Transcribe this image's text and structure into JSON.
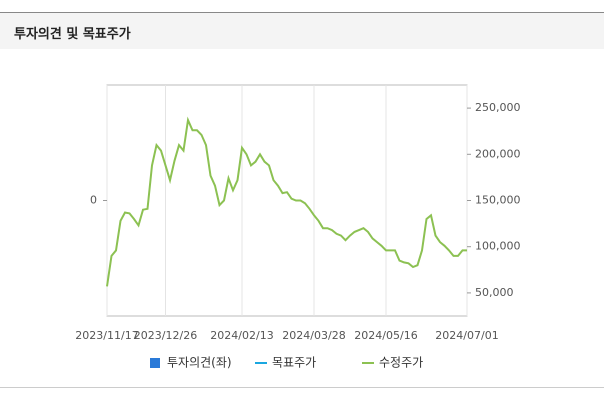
{
  "header": {
    "title": "투자의견 및 목표주가"
  },
  "chart_data": {
    "type": "line",
    "categories": [
      "2023/11/17",
      null,
      null,
      null,
      null,
      null,
      null,
      null,
      null,
      null,
      null,
      null,
      null,
      "2023/12/26",
      null,
      null,
      null,
      null,
      null,
      null,
      null,
      null,
      null,
      null,
      null,
      null,
      null,
      null,
      null,
      null,
      "2024/02/13",
      null,
      null,
      null,
      null,
      null,
      null,
      null,
      null,
      null,
      null,
      null,
      null,
      null,
      null,
      null,
      "2024/03/28",
      null,
      null,
      null,
      null,
      null,
      null,
      null,
      null,
      null,
      null,
      null,
      null,
      null,
      null,
      null,
      "2024/05/16",
      null,
      null,
      null,
      null,
      null,
      null,
      null,
      null,
      null,
      null,
      null,
      null,
      null,
      null,
      null,
      null,
      null,
      "2024/07/01"
    ],
    "series": [
      {
        "name": "투자의견(좌)",
        "color": "#2a7ad8",
        "values": [
          null,
          null,
          null,
          null,
          null,
          null,
          null,
          null,
          null,
          null,
          null,
          null,
          null,
          null,
          null,
          null,
          null,
          null,
          null,
          null,
          null,
          null,
          null,
          null,
          null,
          null,
          null,
          null,
          null,
          null,
          null,
          null,
          null,
          null,
          null,
          null,
          null,
          null,
          null,
          null,
          null,
          null,
          null,
          null,
          null,
          null,
          null,
          null,
          null,
          null,
          null,
          null,
          null,
          null,
          null,
          null,
          null,
          null,
          null,
          null,
          null,
          null,
          null,
          null,
          null,
          null,
          null,
          null,
          null,
          null,
          null,
          null,
          null,
          null,
          null,
          null,
          null,
          null,
          null,
          null,
          null
        ]
      },
      {
        "name": "목표주가",
        "color": "#1aa7e0",
        "axis": "y2",
        "values": [
          null,
          null,
          null,
          null,
          null,
          null,
          null,
          null,
          null,
          null,
          null,
          null,
          null,
          null,
          null,
          null,
          null,
          null,
          null,
          null,
          null,
          null,
          null,
          null,
          null,
          null,
          null,
          null,
          null,
          null,
          null,
          null,
          null,
          null,
          null,
          null,
          null,
          null,
          null,
          null,
          null,
          null,
          null,
          null,
          null,
          null,
          null,
          null,
          null,
          null,
          null,
          null,
          null,
          null,
          null,
          null,
          null,
          null,
          null,
          null,
          null,
          null,
          null,
          null,
          null,
          null,
          null,
          null,
          null,
          null,
          null,
          null,
          null,
          null,
          null,
          null,
          null,
          null,
          null,
          null,
          null
        ]
      },
      {
        "name": "수정주가",
        "color": "#8cc152",
        "axis": "y2",
        "values": [
          57000,
          90000,
          96000,
          128000,
          137000,
          136000,
          130000,
          123000,
          140000,
          141000,
          188000,
          210000,
          204000,
          188000,
          172000,
          193000,
          210000,
          204000,
          237000,
          226000,
          226000,
          221000,
          210000,
          177000,
          166000,
          145000,
          150000,
          174000,
          161000,
          172000,
          207000,
          200000,
          188000,
          192000,
          200000,
          192000,
          188000,
          172000,
          166000,
          158000,
          159000,
          152000,
          150000,
          150000,
          147000,
          141000,
          134000,
          128000,
          120000,
          120000,
          118000,
          114000,
          112000,
          107000,
          112000,
          116000,
          118000,
          120000,
          116000,
          109000,
          105000,
          101000,
          96000,
          96000,
          96000,
          85000,
          83000,
          82000,
          78000,
          80000,
          96000,
          130000,
          134000,
          112000,
          105000,
          101000,
          96000,
          90000,
          90000,
          96000,
          96000
        ]
      }
    ],
    "ylim": [
      -1,
      1
    ],
    "yticks": [
      0
    ],
    "y2lim": [
      25000,
      275000
    ],
    "y2ticks": [
      {
        "value": 50000,
        "label": "50,000"
      },
      {
        "value": 100000,
        "label": "100,000"
      },
      {
        "value": 150000,
        "label": "150,000"
      },
      {
        "value": 200000,
        "label": "200,000"
      },
      {
        "value": 250000,
        "label": "250,000"
      }
    ],
    "grid": true
  }
}
